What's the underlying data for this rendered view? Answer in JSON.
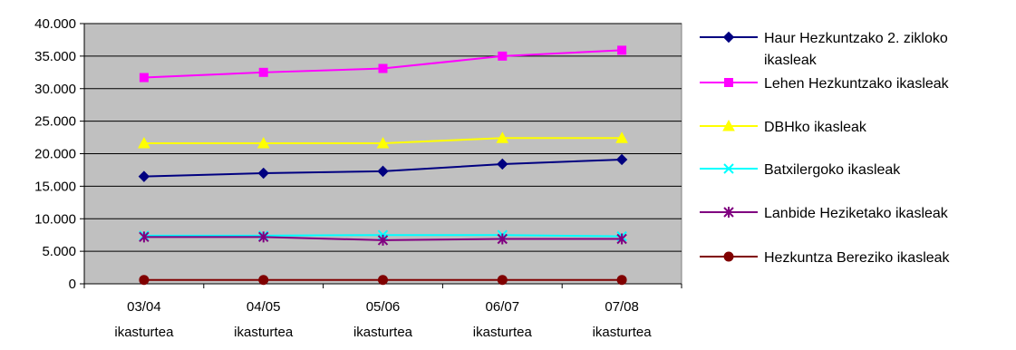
{
  "chart_data": {
    "type": "line",
    "title": "",
    "xlabel": "",
    "ylabel": "",
    "categories": [
      "03/04\nikasturtea",
      "04/05\nikasturtea",
      "05/06\nikasturtea",
      "06/07\nikasturtea",
      "07/08\nikasturtea"
    ],
    "ylim": [
      0,
      40000
    ],
    "y_ticks": [
      0,
      5000,
      10000,
      15000,
      20000,
      25000,
      30000,
      35000,
      40000
    ],
    "y_tick_labels": [
      "0",
      "5.000",
      "10.000",
      "15.000",
      "20.000",
      "25.000",
      "30.000",
      "35.000",
      "40.000"
    ],
    "grid": "horizontal",
    "legend_position": "right",
    "plot_background": "#c0c0c0",
    "series": [
      {
        "name": "Haur Hezkuntzako 2. zikloko ikasleak",
        "values": [
          16500,
          17000,
          17300,
          18400,
          19100
        ],
        "color": "#000080",
        "marker": "diamond"
      },
      {
        "name": "Lehen Hezkuntzako ikasleak",
        "values": [
          31700,
          32500,
          33100,
          35000,
          35900
        ],
        "color": "#ff00ff",
        "marker": "square"
      },
      {
        "name": "DBHko ikasleak",
        "values": [
          21600,
          21600,
          21600,
          22400,
          22400
        ],
        "color": "#ffff00",
        "marker": "triangle"
      },
      {
        "name": "Batxilergoko ikasleak",
        "values": [
          7400,
          7400,
          7500,
          7500,
          7300
        ],
        "color": "#00ffff",
        "marker": "x"
      },
      {
        "name": "Lanbide Heziketako ikasleak",
        "values": [
          7200,
          7200,
          6700,
          6900,
          6900
        ],
        "color": "#800080",
        "marker": "star"
      },
      {
        "name": "Hezkuntza Bereziko ikasleak",
        "values": [
          600,
          600,
          600,
          600,
          600
        ],
        "color": "#800000",
        "marker": "circle"
      }
    ]
  }
}
